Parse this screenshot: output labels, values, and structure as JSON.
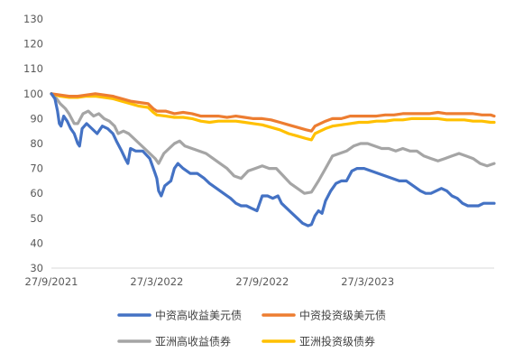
{
  "chart_data": {
    "type": "line",
    "title": "",
    "xlabel": "",
    "ylabel": "",
    "ylim": [
      30,
      130
    ],
    "yticks": [
      30,
      40,
      50,
      60,
      70,
      80,
      90,
      100,
      110,
      120,
      130
    ],
    "xticks": [
      {
        "label": "27/9/2021",
        "x": 0
      },
      {
        "label": "27/3/2022",
        "x": 6
      },
      {
        "label": "27/9/2022",
        "x": 12
      },
      {
        "label": "27/3/2023",
        "x": 18
      }
    ],
    "xlim": [
      0,
      24.5
    ],
    "grid": false,
    "legend": "bottom",
    "series": [
      {
        "name": "中资高收益美元债",
        "color": "#4472C4",
        "points": [
          [
            0,
            100
          ],
          [
            0.2,
            98
          ],
          [
            0.35,
            93
          ],
          [
            0.45,
            88
          ],
          [
            0.55,
            87
          ],
          [
            0.7,
            91
          ],
          [
            0.9,
            89
          ],
          [
            1.1,
            86
          ],
          [
            1.3,
            84
          ],
          [
            1.5,
            80
          ],
          [
            1.6,
            79
          ],
          [
            1.75,
            86
          ],
          [
            2.0,
            88
          ],
          [
            2.3,
            86
          ],
          [
            2.6,
            84
          ],
          [
            2.9,
            87
          ],
          [
            3.2,
            86
          ],
          [
            3.5,
            84
          ],
          [
            3.7,
            81
          ],
          [
            4.0,
            77
          ],
          [
            4.2,
            74
          ],
          [
            4.35,
            72
          ],
          [
            4.5,
            78
          ],
          [
            4.8,
            77
          ],
          [
            5.2,
            77
          ],
          [
            5.6,
            74
          ],
          [
            5.9,
            68
          ],
          [
            6.0,
            66
          ],
          [
            6.1,
            61
          ],
          [
            6.25,
            59
          ],
          [
            6.45,
            63
          ],
          [
            6.8,
            65
          ],
          [
            7.0,
            70
          ],
          [
            7.2,
            72
          ],
          [
            7.5,
            70
          ],
          [
            7.9,
            68
          ],
          [
            8.3,
            68
          ],
          [
            8.7,
            66
          ],
          [
            9.0,
            64
          ],
          [
            9.4,
            62
          ],
          [
            9.8,
            60
          ],
          [
            10.2,
            58
          ],
          [
            10.5,
            56
          ],
          [
            10.8,
            55
          ],
          [
            11.1,
            55
          ],
          [
            11.4,
            54
          ],
          [
            11.7,
            53
          ],
          [
            12.0,
            59
          ],
          [
            12.3,
            59
          ],
          [
            12.6,
            58
          ],
          [
            12.9,
            59
          ],
          [
            13.1,
            56
          ],
          [
            13.4,
            54
          ],
          [
            13.7,
            52
          ],
          [
            14.0,
            50
          ],
          [
            14.3,
            48
          ],
          [
            14.6,
            47
          ],
          [
            14.8,
            47.5
          ],
          [
            15.0,
            51
          ],
          [
            15.2,
            53
          ],
          [
            15.4,
            52
          ],
          [
            15.6,
            57
          ],
          [
            15.9,
            61
          ],
          [
            16.2,
            64
          ],
          [
            16.5,
            65
          ],
          [
            16.8,
            65
          ],
          [
            17.1,
            69
          ],
          [
            17.4,
            70
          ],
          [
            17.8,
            70
          ],
          [
            18.2,
            69
          ],
          [
            18.6,
            68
          ],
          [
            19.0,
            67
          ],
          [
            19.4,
            66
          ],
          [
            19.8,
            65
          ],
          [
            20.2,
            65
          ],
          [
            20.6,
            63
          ],
          [
            21.0,
            61
          ],
          [
            21.3,
            60
          ],
          [
            21.6,
            60
          ],
          [
            21.9,
            61
          ],
          [
            22.2,
            62
          ],
          [
            22.5,
            61
          ],
          [
            22.8,
            59
          ],
          [
            23.1,
            58
          ],
          [
            23.4,
            56
          ],
          [
            23.7,
            55
          ],
          [
            24.0,
            55
          ],
          [
            24.3,
            55
          ],
          [
            24.6,
            56
          ],
          [
            25.0,
            56
          ],
          [
            25.2,
            56
          ]
        ]
      },
      {
        "name": "中资投资级美元债",
        "color": "#ED7D31",
        "points": [
          [
            0,
            100
          ],
          [
            0.5,
            99.5
          ],
          [
            1,
            99
          ],
          [
            1.5,
            99
          ],
          [
            2,
            99.5
          ],
          [
            2.5,
            100
          ],
          [
            3,
            99.5
          ],
          [
            3.5,
            99
          ],
          [
            4,
            98
          ],
          [
            4.5,
            97
          ],
          [
            5,
            96.5
          ],
          [
            5.5,
            96
          ],
          [
            5.8,
            94
          ],
          [
            6.0,
            93
          ],
          [
            6.5,
            93
          ],
          [
            7,
            92
          ],
          [
            7.5,
            92.5
          ],
          [
            8,
            92
          ],
          [
            8.5,
            91
          ],
          [
            9,
            91
          ],
          [
            9.5,
            91
          ],
          [
            10,
            90.5
          ],
          [
            10.5,
            91
          ],
          [
            11,
            90.5
          ],
          [
            11.5,
            90
          ],
          [
            12,
            90
          ],
          [
            12.5,
            89.5
          ],
          [
            13,
            88.5
          ],
          [
            13.5,
            87.5
          ],
          [
            14,
            86.5
          ],
          [
            14.5,
            85.5
          ],
          [
            14.8,
            85
          ],
          [
            15.0,
            87
          ],
          [
            15.3,
            88
          ],
          [
            15.6,
            89
          ],
          [
            16,
            90
          ],
          [
            16.5,
            90
          ],
          [
            17,
            91
          ],
          [
            17.5,
            91
          ],
          [
            18,
            91
          ],
          [
            18.5,
            91
          ],
          [
            19,
            91.5
          ],
          [
            19.5,
            91.5
          ],
          [
            20,
            92
          ],
          [
            20.5,
            92
          ],
          [
            21,
            92
          ],
          [
            21.5,
            92
          ],
          [
            22,
            92.5
          ],
          [
            22.5,
            92
          ],
          [
            23,
            92
          ],
          [
            23.5,
            92
          ],
          [
            24,
            92
          ],
          [
            24.5,
            91.5
          ],
          [
            25,
            91.5
          ],
          [
            25.2,
            91
          ]
        ]
      },
      {
        "name": "亚洲高收益债券",
        "color": "#A5A5A5",
        "points": [
          [
            0,
            100
          ],
          [
            0.3,
            98
          ],
          [
            0.5,
            96
          ],
          [
            0.8,
            94
          ],
          [
            1.0,
            92
          ],
          [
            1.3,
            88
          ],
          [
            1.5,
            88
          ],
          [
            1.8,
            92
          ],
          [
            2.1,
            93
          ],
          [
            2.4,
            91
          ],
          [
            2.7,
            92
          ],
          [
            3.0,
            90
          ],
          [
            3.3,
            89
          ],
          [
            3.6,
            87
          ],
          [
            3.8,
            84
          ],
          [
            4.1,
            85
          ],
          [
            4.4,
            84
          ],
          [
            4.7,
            82
          ],
          [
            5.0,
            80
          ],
          [
            5.3,
            78
          ],
          [
            5.6,
            76
          ],
          [
            5.9,
            74
          ],
          [
            6.1,
            72
          ],
          [
            6.4,
            76
          ],
          [
            6.7,
            78
          ],
          [
            7.0,
            80
          ],
          [
            7.3,
            81
          ],
          [
            7.6,
            79
          ],
          [
            8.0,
            78
          ],
          [
            8.4,
            77
          ],
          [
            8.8,
            76
          ],
          [
            9.2,
            74
          ],
          [
            9.6,
            72
          ],
          [
            10.0,
            70
          ],
          [
            10.4,
            67
          ],
          [
            10.8,
            66
          ],
          [
            11.2,
            69
          ],
          [
            11.6,
            70
          ],
          [
            12.0,
            71
          ],
          [
            12.4,
            70
          ],
          [
            12.8,
            70
          ],
          [
            13.2,
            67
          ],
          [
            13.6,
            64
          ],
          [
            14.0,
            62
          ],
          [
            14.4,
            60
          ],
          [
            14.8,
            60.5
          ],
          [
            15.2,
            65
          ],
          [
            15.6,
            70
          ],
          [
            16.0,
            75
          ],
          [
            16.4,
            76
          ],
          [
            16.8,
            77
          ],
          [
            17.2,
            79
          ],
          [
            17.6,
            80
          ],
          [
            18.0,
            80
          ],
          [
            18.4,
            79
          ],
          [
            18.8,
            78
          ],
          [
            19.2,
            78
          ],
          [
            19.6,
            77
          ],
          [
            20.0,
            78
          ],
          [
            20.4,
            77
          ],
          [
            20.8,
            77
          ],
          [
            21.2,
            75
          ],
          [
            21.6,
            74
          ],
          [
            22.0,
            73
          ],
          [
            22.4,
            74
          ],
          [
            22.8,
            75
          ],
          [
            23.2,
            76
          ],
          [
            23.6,
            75
          ],
          [
            24.0,
            74
          ],
          [
            24.4,
            72
          ],
          [
            24.8,
            71
          ],
          [
            25.2,
            72
          ]
        ]
      },
      {
        "name": "亚洲投资级债券",
        "color": "#FFC000",
        "points": [
          [
            0,
            100
          ],
          [
            0.5,
            99
          ],
          [
            1,
            98.5
          ],
          [
            1.5,
            98.5
          ],
          [
            2,
            99
          ],
          [
            2.5,
            99
          ],
          [
            3,
            98.5
          ],
          [
            3.5,
            98
          ],
          [
            4,
            97
          ],
          [
            4.5,
            96
          ],
          [
            5,
            95
          ],
          [
            5.5,
            94.5
          ],
          [
            5.8,
            92.5
          ],
          [
            6.0,
            91.5
          ],
          [
            6.5,
            91
          ],
          [
            7,
            90.5
          ],
          [
            7.5,
            90.5
          ],
          [
            8,
            90
          ],
          [
            8.5,
            89
          ],
          [
            9,
            88.5
          ],
          [
            9.5,
            89
          ],
          [
            10,
            89
          ],
          [
            10.5,
            89
          ],
          [
            11,
            88.5
          ],
          [
            11.5,
            88
          ],
          [
            12,
            87.5
          ],
          [
            12.5,
            86.5
          ],
          [
            13,
            85.5
          ],
          [
            13.5,
            84
          ],
          [
            14,
            83
          ],
          [
            14.5,
            82
          ],
          [
            14.8,
            81.5
          ],
          [
            15.0,
            84
          ],
          [
            15.3,
            85
          ],
          [
            15.6,
            86
          ],
          [
            16,
            87
          ],
          [
            16.5,
            87.5
          ],
          [
            17,
            88
          ],
          [
            17.5,
            88.5
          ],
          [
            18,
            88.5
          ],
          [
            18.5,
            89
          ],
          [
            19,
            89
          ],
          [
            19.5,
            89.5
          ],
          [
            20,
            89.5
          ],
          [
            20.5,
            90
          ],
          [
            21,
            90
          ],
          [
            21.5,
            90
          ],
          [
            22,
            90
          ],
          [
            22.5,
            89.5
          ],
          [
            23,
            89.5
          ],
          [
            23.5,
            89.5
          ],
          [
            24,
            89
          ],
          [
            24.5,
            89
          ],
          [
            25,
            88.5
          ],
          [
            25.2,
            88.5
          ]
        ]
      }
    ]
  }
}
